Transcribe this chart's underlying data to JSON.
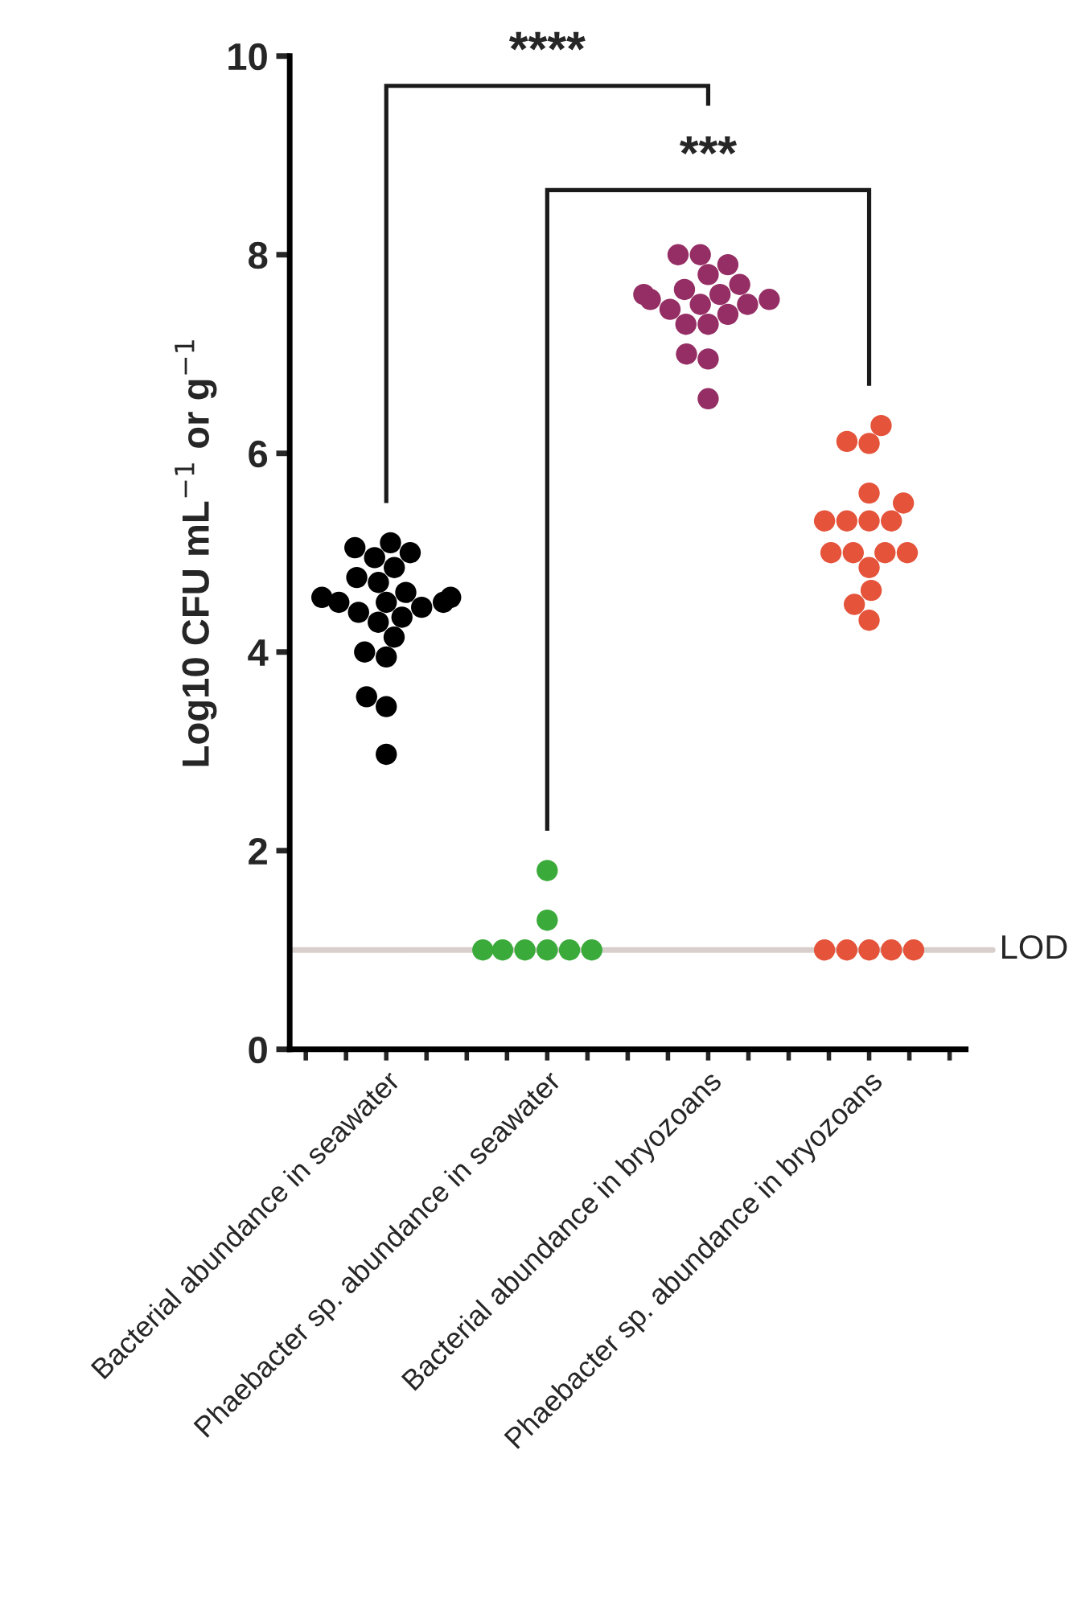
{
  "chart_data": {
    "type": "scatter",
    "categories": [
      "Bacterial abundance in seawater",
      "Phaebacter sp. abundance in seawater",
      "Bacterial abundance in bryozoans",
      "Phaebacter sp. abundance in bryozoans"
    ],
    "ylabel": "Log10 CFU mL$^{−1}$ or g$^{−1}$",
    "series": [
      {
        "color": "#000000",
        "x": [
          "Bacterial abundance in seawater",
          "Bacterial abundance in seawater",
          "Bacterial abundance in seawater",
          "Bacterial abundance in seawater",
          "Bacterial abundance in seawater",
          "Bacterial abundance in seawater",
          "Bacterial abundance in seawater",
          "Bacterial abundance in seawater",
          "Bacterial abundance in seawater",
          "Bacterial abundance in seawater",
          "Bacterial abundance in seawater",
          "Bacterial abundance in seawater",
          "Bacterial abundance in seawater",
          "Bacterial abundance in seawater",
          "Bacterial abundance in seawater",
          "Bacterial abundance in seawater",
          "Bacterial abundance in seawater",
          "Bacterial abundance in seawater",
          "Bacterial abundance in seawater",
          "Bacterial abundance in seawater",
          "Bacterial abundance in seawater",
          "Bacterial abundance in seawater",
          "Bacterial abundance in seawater"
        ],
        "values": [
          5.1,
          5.05,
          5.0,
          4.95,
          4.85,
          4.75,
          4.7,
          4.6,
          4.55,
          4.55,
          4.5,
          4.5,
          4.5,
          4.45,
          4.4,
          4.35,
          4.3,
          4.15,
          4.0,
          3.95,
          3.55,
          3.45,
          2.97
        ]
      },
      {
        "color": "#3aaa3a",
        "x": [
          "Phaebacter sp. abundance in seawater",
          "Phaebacter sp. abundance in seawater",
          "Phaebacter sp. abundance in seawater",
          "Phaebacter sp. abundance in seawater",
          "Phaebacter sp. abundance in seawater",
          "Phaebacter sp. abundance in seawater",
          "Phaebacter sp. abundance in seawater",
          "Phaebacter sp. abundance in seawater"
        ],
        "values": [
          1.8,
          1.3,
          1.0,
          1.0,
          1.0,
          1.0,
          1.0,
          1.0
        ]
      },
      {
        "color": "#952e64",
        "x": [
          "Bacterial abundance in bryozoans",
          "Bacterial abundance in bryozoans",
          "Bacterial abundance in bryozoans",
          "Bacterial abundance in bryozoans",
          "Bacterial abundance in bryozoans",
          "Bacterial abundance in bryozoans",
          "Bacterial abundance in bryozoans",
          "Bacterial abundance in bryozoans",
          "Bacterial abundance in bryozoans",
          "Bacterial abundance in bryozoans",
          "Bacterial abundance in bryozoans",
          "Bacterial abundance in bryozoans",
          "Bacterial abundance in bryozoans",
          "Bacterial abundance in bryozoans",
          "Bacterial abundance in bryozoans",
          "Bacterial abundance in bryozoans",
          "Bacterial abundance in bryozoans",
          "Bacterial abundance in bryozoans",
          "Bacterial abundance in bryozoans"
        ],
        "values": [
          8.0,
          8.0,
          7.9,
          7.8,
          7.7,
          7.65,
          7.6,
          7.6,
          7.55,
          7.55,
          7.5,
          7.5,
          7.45,
          7.4,
          7.3,
          7.3,
          7.0,
          6.95,
          6.55
        ]
      },
      {
        "color": "#e4533a",
        "x": [
          "Phaebacter sp. abundance in bryozoans",
          "Phaebacter sp. abundance in bryozoans",
          "Phaebacter sp. abundance in bryozoans",
          "Phaebacter sp. abundance in bryozoans",
          "Phaebacter sp. abundance in bryozoans",
          "Phaebacter sp. abundance in bryozoans",
          "Phaebacter sp. abundance in bryozoans",
          "Phaebacter sp. abundance in bryozoans",
          "Phaebacter sp. abundance in bryozoans",
          "Phaebacter sp. abundance in bryozoans",
          "Phaebacter sp. abundance in bryozoans",
          "Phaebacter sp. abundance in bryozoans",
          "Phaebacter sp. abundance in bryozoans",
          "Phaebacter sp. abundance in bryozoans",
          "Phaebacter sp. abundance in bryozoans",
          "Phaebacter sp. abundance in bryozoans",
          "Phaebacter sp. abundance in bryozoans",
          "Phaebacter sp. abundance in bryozoans",
          "Phaebacter sp. abundance in bryozoans",
          "Phaebacter sp. abundance in bryozoans",
          "Phaebacter sp. abundance in bryozoans",
          "Phaebacter sp. abundance in bryozoans"
        ],
        "values": [
          6.28,
          6.12,
          6.1,
          5.6,
          5.5,
          5.32,
          5.32,
          5.32,
          5.32,
          5.0,
          5.0,
          5.0,
          5.0,
          4.85,
          4.62,
          4.48,
          4.32,
          1.0,
          1.0,
          1.0,
          1.0,
          1.0
        ]
      }
    ],
    "ylim": [
      0,
      10
    ],
    "yticks": [
      0,
      2,
      4,
      6,
      8,
      10
    ],
    "grid": false,
    "marker": "circle",
    "ref_lines": [
      {
        "axis": "y",
        "value": 1,
        "label": "LOD",
        "color": "#d8cfcc"
      }
    ],
    "annotations": [
      "****",
      "***"
    ]
  }
}
